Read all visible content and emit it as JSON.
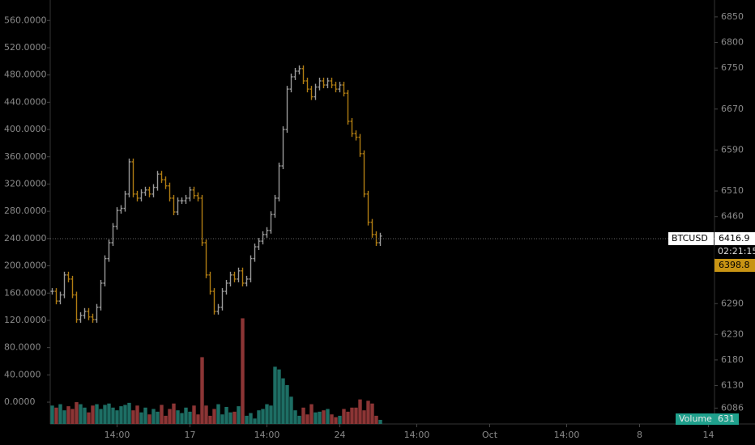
{
  "chart_data": {
    "type": "ohlc_volume",
    "symbol": "BTCUSD",
    "last_price": 6416.9,
    "countdown": "02:21:15",
    "other_price": 6398.8,
    "volume_label": "Volume",
    "volume_last": 631,
    "up_color": "#9a9a9a",
    "down_color": "#b07d12",
    "volume_up_color": "#1d6e64",
    "volume_down_color": "#8c3535",
    "xlim": [
      -0.5,
      163.5
    ],
    "xticks": [
      {
        "value": 16,
        "label": "14:00"
      },
      {
        "value": 34,
        "label": "17"
      },
      {
        "value": 53,
        "label": "14:00"
      },
      {
        "value": 71,
        "label": "24"
      },
      {
        "value": 90,
        "label": "14:00"
      },
      {
        "value": 108,
        "label": "Oct"
      },
      {
        "value": 127,
        "label": "14:00"
      },
      {
        "value": 145,
        "label": "8"
      },
      {
        "value": 162,
        "label": "14"
      }
    ],
    "ylim": [
      6055,
      6883
    ],
    "yticks": [
      6850,
      6800,
      6750,
      6670,
      6590,
      6510,
      6460,
      6290,
      6230,
      6180,
      6130,
      6086
    ],
    "y2lim": [
      -32,
      590
    ],
    "y2ticks": [
      {
        "value": 560,
        "label": "560.0000"
      },
      {
        "value": 520,
        "label": "520.0000"
      },
      {
        "value": 480,
        "label": "480.0000"
      },
      {
        "value": 440,
        "label": "440.0000"
      },
      {
        "value": 400,
        "label": "400.0000"
      },
      {
        "value": 360,
        "label": "360.0000"
      },
      {
        "value": 320,
        "label": "320.0000"
      },
      {
        "value": 280,
        "label": "280.0000"
      },
      {
        "value": 240,
        "label": "240.0000"
      },
      {
        "value": 200,
        "label": "200.0000"
      },
      {
        "value": 160,
        "label": "160.0000"
      },
      {
        "value": 120,
        "label": "120.0000"
      },
      {
        "value": 80,
        "label": "80.0000"
      },
      {
        "value": 40,
        "label": "40.0000"
      },
      {
        "value": 0,
        "label": "0.0000"
      }
    ],
    "close": [
      6314,
      6295,
      6307,
      6346,
      6338,
      6307,
      6259,
      6267,
      6275,
      6264,
      6259,
      6283,
      6330,
      6378,
      6409,
      6441,
      6472,
      6476,
      6504,
      6567,
      6504,
      6496,
      6507,
      6512,
      6504,
      6517,
      6543,
      6532,
      6520,
      6496,
      6469,
      6491,
      6491,
      6496,
      6512,
      6501,
      6496,
      6409,
      6346,
      6314,
      6275,
      6283,
      6314,
      6330,
      6346,
      6338,
      6354,
      6330,
      6338,
      6378,
      6401,
      6412,
      6425,
      6433,
      6464,
      6496,
      6559,
      6630,
      6709,
      6733,
      6744,
      6749,
      6725,
      6709,
      6694,
      6713,
      6725,
      6717,
      6725,
      6717,
      6709,
      6717,
      6701,
      6646,
      6622,
      6615,
      6583,
      6504,
      6449,
      6425,
      6409,
      6422
    ],
    "volume": [
      -5,
      -8,
      -3,
      -12,
      -6,
      -10,
      0,
      -3,
      -8,
      -15,
      -5,
      -3,
      -10,
      -4,
      -2,
      -8,
      -12,
      -6,
      -4,
      -1,
      -12,
      -5,
      -15,
      -8,
      -18,
      -10,
      -14,
      -4,
      -20,
      -10,
      -2,
      -12,
      -16,
      -8,
      -14,
      -5,
      -18,
      66,
      -5,
      -20,
      -10,
      -3,
      -18,
      -7,
      -15,
      -14,
      -6,
      123,
      -20,
      -16,
      -24,
      -12,
      -10,
      -3,
      -5,
      52,
      48,
      35,
      25,
      8,
      -12,
      -20,
      -8,
      -18,
      -3,
      -15,
      -14,
      -12,
      -10,
      -18,
      -22,
      -20,
      -10,
      -14,
      -8,
      -8,
      4,
      -12,
      2,
      -2,
      -20,
      -26
    ]
  }
}
